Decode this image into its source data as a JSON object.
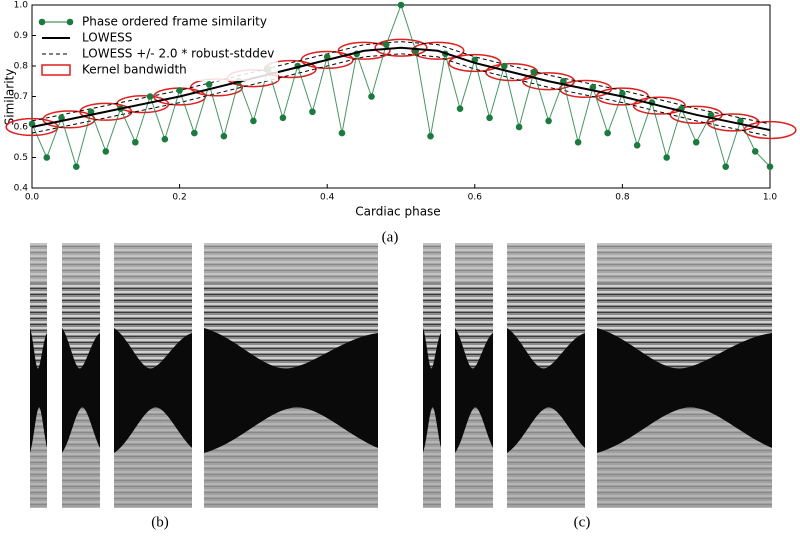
{
  "chart_data": {
    "type": "line",
    "x_label": "Cardiac phase",
    "y_label": "Similarity",
    "xlim": [
      0,
      1
    ],
    "ylim": [
      0.4,
      1.0
    ],
    "xticks": [
      {
        "value": 0,
        "label": "0.0"
      },
      0.2,
      0.4,
      0.6,
      0.8,
      {
        "value": 1,
        "label": "1.0"
      }
    ],
    "yticks": [
      0.4,
      0.5,
      0.6,
      0.7,
      0.8,
      0.9,
      {
        "value": 1,
        "label": "1.0"
      }
    ],
    "legend": "upper left",
    "series": [
      {
        "name": "Phase ordered frame similarity",
        "color": "#1b7a3e",
        "style": "line-markers",
        "x": [
          0,
          0.02,
          0.04,
          0.06,
          0.08,
          0.1,
          0.12,
          0.14,
          0.16,
          0.18,
          0.2,
          0.22,
          0.24,
          0.26,
          0.28,
          0.3,
          0.32,
          0.34,
          0.36,
          0.38,
          0.4,
          0.42,
          0.44,
          0.46,
          0.48,
          0.5,
          0.52,
          0.54,
          0.56,
          0.58,
          0.6,
          0.62,
          0.64,
          0.66,
          0.68,
          0.7,
          0.72,
          0.74,
          0.76,
          0.78,
          0.8,
          0.82,
          0.84,
          0.86,
          0.88,
          0.9,
          0.92,
          0.94,
          0.96,
          0.98,
          1.0
        ],
        "values": [
          0.61,
          0.5,
          0.63,
          0.47,
          0.65,
          0.52,
          0.66,
          0.55,
          0.7,
          0.56,
          0.72,
          0.58,
          0.74,
          0.57,
          0.75,
          0.62,
          0.79,
          0.63,
          0.8,
          0.65,
          0.83,
          0.58,
          0.84,
          0.7,
          0.87,
          1.0,
          0.85,
          0.57,
          0.84,
          0.66,
          0.82,
          0.63,
          0.8,
          0.6,
          0.78,
          0.62,
          0.75,
          0.55,
          0.73,
          0.58,
          0.71,
          0.54,
          0.68,
          0.5,
          0.66,
          0.55,
          0.64,
          0.47,
          0.62,
          0.52,
          0.47
        ]
      },
      {
        "name": "LOWESS",
        "color": "#000000",
        "style": "line",
        "x": [
          0,
          0.1,
          0.2,
          0.3,
          0.4,
          0.45,
          0.5,
          0.55,
          0.6,
          0.7,
          0.8,
          0.9,
          1.0
        ],
        "values": [
          0.6,
          0.65,
          0.7,
          0.76,
          0.82,
          0.85,
          0.86,
          0.85,
          0.81,
          0.75,
          0.7,
          0.64,
          0.59
        ]
      },
      {
        "name": "LOWESS +/- 2.0 * robust-stddev",
        "color": "#000000",
        "style": "band-dashed",
        "x": [
          0,
          0.1,
          0.2,
          0.3,
          0.4,
          0.45,
          0.5,
          0.55,
          0.6,
          0.7,
          0.8,
          0.9,
          1.0
        ],
        "values_upper": [
          0.62,
          0.67,
          0.72,
          0.78,
          0.84,
          0.87,
          0.88,
          0.87,
          0.83,
          0.77,
          0.72,
          0.66,
          0.61
        ],
        "values_lower": [
          0.58,
          0.63,
          0.68,
          0.74,
          0.8,
          0.83,
          0.84,
          0.83,
          0.79,
          0.73,
          0.68,
          0.62,
          0.57
        ]
      },
      {
        "name": "Kernel bandwidth",
        "color": "#e01f1f",
        "style": "ellipses",
        "x": [
          0,
          0.05,
          0.1,
          0.15,
          0.2,
          0.25,
          0.3,
          0.35,
          0.4,
          0.45,
          0.5,
          0.55,
          0.6,
          0.65,
          0.7,
          0.75,
          0.8,
          0.85,
          0.9,
          0.95,
          1.0
        ],
        "values": [
          0.6,
          0.625,
          0.65,
          0.675,
          0.7,
          0.73,
          0.76,
          0.79,
          0.82,
          0.85,
          0.86,
          0.85,
          0.81,
          0.78,
          0.75,
          0.725,
          0.7,
          0.67,
          0.64,
          0.615,
          0.59
        ],
        "width": 0.05,
        "height": 0.05
      }
    ]
  },
  "captions": {
    "a": "(a)",
    "b": "(b)",
    "c": "(c)"
  }
}
